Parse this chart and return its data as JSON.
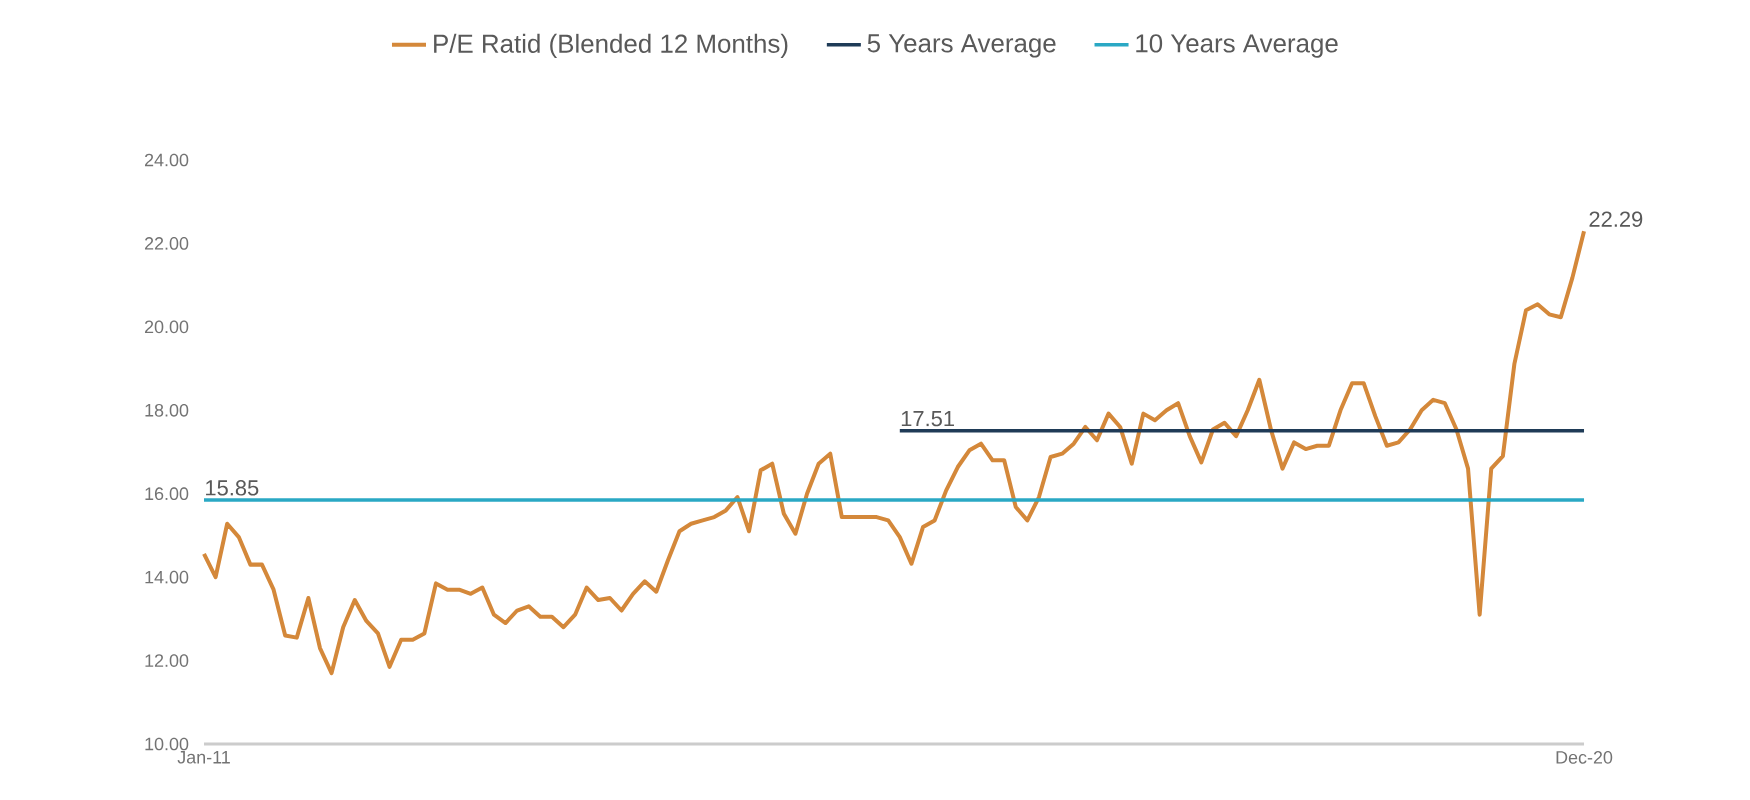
{
  "chart_data": {
    "type": "line",
    "categories": [
      "Jan-11",
      null,
      null,
      null,
      null,
      null,
      null,
      null,
      null,
      null,
      null,
      null,
      null,
      null,
      null,
      null,
      null,
      null,
      null,
      null,
      null,
      null,
      null,
      null,
      null,
      null,
      null,
      null,
      null,
      null,
      null,
      null,
      null,
      null,
      null,
      null,
      null,
      null,
      null,
      null,
      null,
      null,
      null,
      null,
      null,
      null,
      null,
      null,
      null,
      null,
      null,
      null,
      null,
      null,
      null,
      null,
      null,
      null,
      null,
      null,
      null,
      null,
      null,
      null,
      null,
      null,
      null,
      null,
      null,
      null,
      null,
      null,
      null,
      null,
      null,
      null,
      null,
      null,
      null,
      null,
      null,
      null,
      null,
      null,
      null,
      null,
      null,
      null,
      null,
      null,
      null,
      null,
      null,
      null,
      null,
      null,
      null,
      null,
      null,
      null,
      null,
      null,
      null,
      null,
      null,
      null,
      null,
      null,
      null,
      null,
      null,
      null,
      null,
      null,
      null,
      null,
      null,
      null,
      null,
      "Dec-20"
    ],
    "series": [
      {
        "name": "P/E Ratid (Blended 12 Months)",
        "color": "#d4883a",
        "values": [
          14.56,
          14.0,
          15.28,
          14.96,
          14.3,
          14.3,
          13.7,
          12.6,
          12.55,
          13.5,
          12.3,
          11.7,
          12.8,
          13.45,
          12.95,
          12.65,
          11.85,
          12.5,
          12.5,
          12.65,
          13.85,
          13.7,
          13.7,
          13.6,
          13.75,
          13.1,
          12.9,
          13.2,
          13.3,
          13.05,
          13.05,
          12.8,
          13.1,
          13.75,
          13.45,
          13.5,
          13.2,
          13.6,
          13.9,
          13.65,
          14.4,
          15.1,
          15.28,
          15.36,
          15.44,
          15.6,
          15.92,
          15.1,
          16.56,
          16.72,
          15.52,
          15.04,
          16.0,
          16.72,
          16.96,
          15.44,
          15.44,
          15.44,
          15.44,
          15.36,
          14.96,
          14.32,
          15.2,
          15.36,
          16.08,
          16.64,
          17.04,
          17.2,
          16.8,
          16.8,
          15.68,
          15.36,
          15.92,
          16.88,
          16.96,
          17.2,
          17.6,
          17.28,
          17.92,
          17.6,
          16.72,
          17.92,
          17.76,
          18.0,
          18.17,
          17.38,
          16.75,
          17.54,
          17.7,
          17.38,
          18.0,
          18.73,
          17.54,
          16.6,
          17.23,
          17.07,
          17.15,
          17.15,
          18.0,
          18.65,
          18.65,
          17.86,
          17.15,
          17.23,
          17.54,
          18.0,
          18.25,
          18.17,
          17.54,
          16.6,
          13.1,
          16.6,
          16.9,
          19.12,
          20.4,
          20.54,
          20.3,
          20.23,
          21.18,
          22.29
        ],
        "value_labels": [
          null,
          null,
          null,
          null,
          null,
          null,
          null,
          null,
          null,
          null,
          null,
          null,
          null,
          null,
          null,
          null,
          null,
          null,
          null,
          null,
          null,
          null,
          null,
          null,
          null,
          null,
          null,
          null,
          null,
          null,
          null,
          null,
          null,
          null,
          null,
          null,
          null,
          null,
          null,
          null,
          null,
          null,
          null,
          null,
          null,
          null,
          null,
          null,
          null,
          null,
          null,
          null,
          null,
          null,
          null,
          null,
          null,
          null,
          null,
          null,
          null,
          null,
          null,
          null,
          null,
          null,
          null,
          null,
          null,
          null,
          null,
          null,
          null,
          null,
          null,
          null,
          null,
          null,
          null,
          null,
          null,
          null,
          null,
          null,
          null,
          null,
          null,
          null,
          null,
          null,
          null,
          null,
          null,
          null,
          null,
          null,
          null,
          null,
          null,
          null,
          null,
          null,
          null,
          null,
          null,
          null,
          null,
          null,
          null,
          null,
          null,
          null,
          null,
          null,
          null,
          null,
          null,
          null,
          null,
          "22.29"
        ]
      },
      {
        "name": "5 Years Average",
        "color": "#1f3b57",
        "values": [
          null,
          null,
          null,
          null,
          null,
          null,
          null,
          null,
          null,
          null,
          null,
          null,
          null,
          null,
          null,
          null,
          null,
          null,
          null,
          null,
          null,
          null,
          null,
          null,
          null,
          null,
          null,
          null,
          null,
          null,
          null,
          null,
          null,
          null,
          null,
          null,
          null,
          null,
          null,
          null,
          null,
          null,
          null,
          null,
          null,
          null,
          null,
          null,
          null,
          null,
          null,
          null,
          null,
          null,
          null,
          null,
          null,
          null,
          null,
          null,
          17.51,
          17.51,
          17.51,
          17.51,
          17.51,
          17.51,
          17.51,
          17.51,
          17.51,
          17.51,
          17.51,
          17.51,
          17.51,
          17.51,
          17.51,
          17.51,
          17.51,
          17.51,
          17.51,
          17.51,
          17.51,
          17.51,
          17.51,
          17.51,
          17.51,
          17.51,
          17.51,
          17.51,
          17.51,
          17.51,
          17.51,
          17.51,
          17.51,
          17.51,
          17.51,
          17.51,
          17.51,
          17.51,
          17.51,
          17.51,
          17.51,
          17.51,
          17.51,
          17.51,
          17.51,
          17.51,
          17.51,
          17.51,
          17.51,
          17.51,
          17.51,
          17.51,
          17.51,
          17.51,
          17.51,
          17.51,
          17.51,
          17.51,
          17.51,
          17.51
        ],
        "value_labels": [
          null,
          null,
          null,
          null,
          null,
          null,
          null,
          null,
          null,
          null,
          null,
          null,
          null,
          null,
          null,
          null,
          null,
          null,
          null,
          null,
          null,
          null,
          null,
          null,
          null,
          null,
          null,
          null,
          null,
          null,
          null,
          null,
          null,
          null,
          null,
          null,
          null,
          null,
          null,
          null,
          null,
          null,
          null,
          null,
          null,
          null,
          null,
          null,
          null,
          null,
          null,
          null,
          null,
          null,
          null,
          null,
          null,
          null,
          null,
          null,
          "17.51",
          null,
          null,
          null,
          null,
          null,
          null,
          null,
          null,
          null,
          null,
          null,
          null,
          null,
          null,
          null,
          null,
          null,
          null,
          null,
          null,
          null,
          null,
          null,
          null,
          null,
          null,
          null,
          null,
          null,
          null,
          null,
          null,
          null,
          null,
          null,
          null,
          null,
          null,
          null,
          null,
          null,
          null,
          null,
          null,
          null,
          null,
          null,
          null,
          null,
          null,
          null,
          null,
          null,
          null,
          null,
          null,
          null,
          null,
          null
        ]
      },
      {
        "name": "10 Years Average",
        "color": "#2aa8c4",
        "values": [
          15.85,
          15.85,
          15.85,
          15.85,
          15.85,
          15.85,
          15.85,
          15.85,
          15.85,
          15.85,
          15.85,
          15.85,
          15.85,
          15.85,
          15.85,
          15.85,
          15.85,
          15.85,
          15.85,
          15.85,
          15.85,
          15.85,
          15.85,
          15.85,
          15.85,
          15.85,
          15.85,
          15.85,
          15.85,
          15.85,
          15.85,
          15.85,
          15.85,
          15.85,
          15.85,
          15.85,
          15.85,
          15.85,
          15.85,
          15.85,
          15.85,
          15.85,
          15.85,
          15.85,
          15.85,
          15.85,
          15.85,
          15.85,
          15.85,
          15.85,
          15.85,
          15.85,
          15.85,
          15.85,
          15.85,
          15.85,
          15.85,
          15.85,
          15.85,
          15.85,
          15.85,
          15.85,
          15.85,
          15.85,
          15.85,
          15.85,
          15.85,
          15.85,
          15.85,
          15.85,
          15.85,
          15.85,
          15.85,
          15.85,
          15.85,
          15.85,
          15.85,
          15.85,
          15.85,
          15.85,
          15.85,
          15.85,
          15.85,
          15.85,
          15.85,
          15.85,
          15.85,
          15.85,
          15.85,
          15.85,
          15.85,
          15.85,
          15.85,
          15.85,
          15.85,
          15.85,
          15.85,
          15.85,
          15.85,
          15.85,
          15.85,
          15.85,
          15.85,
          15.85,
          15.85,
          15.85,
          15.85,
          15.85,
          15.85,
          15.85,
          15.85,
          15.85,
          15.85,
          15.85,
          15.85,
          15.85,
          15.85,
          15.85,
          15.85,
          15.85
        ],
        "value_labels": [
          "15.85",
          null,
          null,
          null,
          null,
          null,
          null,
          null,
          null,
          null,
          null,
          null,
          null,
          null,
          null,
          null,
          null,
          null,
          null,
          null,
          null,
          null,
          null,
          null,
          null,
          null,
          null,
          null,
          null,
          null,
          null,
          null,
          null,
          null,
          null,
          null,
          null,
          null,
          null,
          null,
          null,
          null,
          null,
          null,
          null,
          null,
          null,
          null,
          null,
          null,
          null,
          null,
          null,
          null,
          null,
          null,
          null,
          null,
          null,
          null,
          null,
          null,
          null,
          null,
          null,
          null,
          null,
          null,
          null,
          null,
          null,
          null,
          null,
          null,
          null,
          null,
          null,
          null,
          null,
          null,
          null,
          null,
          null,
          null,
          null,
          null,
          null,
          null,
          null,
          null,
          null,
          null,
          null,
          null,
          null,
          null,
          null,
          null,
          null,
          null,
          null,
          null,
          null,
          null,
          null,
          null,
          null,
          null,
          null,
          null,
          null,
          null,
          null,
          null,
          null,
          null,
          null,
          null,
          null,
          null
        ]
      }
    ],
    "ylim": [
      10,
      24
    ],
    "yticks": [
      {
        "value": 10,
        "label": "10.00"
      },
      {
        "value": 12,
        "label": "12.00"
      },
      {
        "value": 14,
        "label": "14.00"
      },
      {
        "value": 16,
        "label": "16.00"
      },
      {
        "value": 18,
        "label": "18.00"
      },
      {
        "value": 20,
        "label": "20.00"
      },
      {
        "value": 22,
        "label": "22.00"
      },
      {
        "value": 24,
        "label": "24.00"
      }
    ],
    "legend": "top",
    "line_style": "solid"
  }
}
